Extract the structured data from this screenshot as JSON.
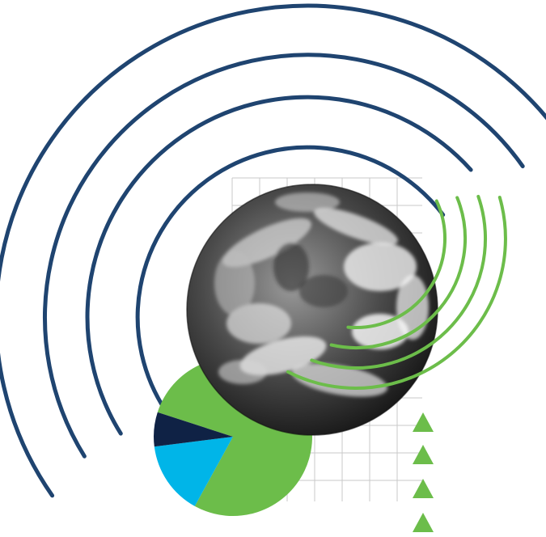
{
  "colors": {
    "navy": "#1f4470",
    "green": "#6cbd4a",
    "light_blue": "#00b5e8",
    "dark_navy": "#0f2245",
    "grid": "#c8c8c8",
    "earth_dark": "#1a1a1a",
    "earth_light": "#f2f2f2"
  },
  "icons": {
    "signal_waves": "broadcast-arcs-icon",
    "earth": "earth-globe-icon",
    "pie": "pie-chart-icon",
    "triangles": "triangle-up-icon"
  },
  "pie_slices": [
    {
      "name": "green",
      "fraction": 0.78
    },
    {
      "name": "light_blue",
      "fraction": 0.15
    },
    {
      "name": "dark_navy",
      "fraction": 0.07
    }
  ]
}
